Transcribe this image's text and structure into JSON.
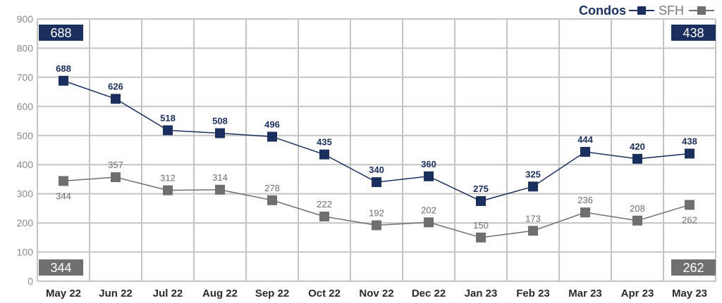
{
  "chart_data": {
    "type": "line",
    "title": "",
    "xlabel": "",
    "ylabel": "",
    "ylim": [
      0,
      900
    ],
    "yticks": [
      0,
      100,
      200,
      300,
      400,
      500,
      600,
      700,
      800,
      900
    ],
    "grid": true,
    "legend_position": "top-right",
    "categories": [
      "May 22",
      "Jun 22",
      "Jul 22",
      "Aug 22",
      "Sep 22",
      "Oct 22",
      "Nov 22",
      "Dec 22",
      "Jan 23",
      "Feb 23",
      "Mar 23",
      "Apr 23",
      "May 23"
    ],
    "series": [
      {
        "name": "Condos",
        "color": "#1b2f5e",
        "values": [
          688,
          626,
          518,
          508,
          496,
          435,
          340,
          360,
          275,
          325,
          444,
          420,
          438
        ]
      },
      {
        "name": "SFH",
        "color": "#6f6f72",
        "values": [
          344,
          357,
          312,
          314,
          278,
          222,
          192,
          202,
          150,
          173,
          236,
          208,
          262
        ]
      }
    ],
    "annotations": {
      "condos_start": "688",
      "condos_end": "438",
      "sfh_start": "344",
      "sfh_end": "262"
    }
  }
}
